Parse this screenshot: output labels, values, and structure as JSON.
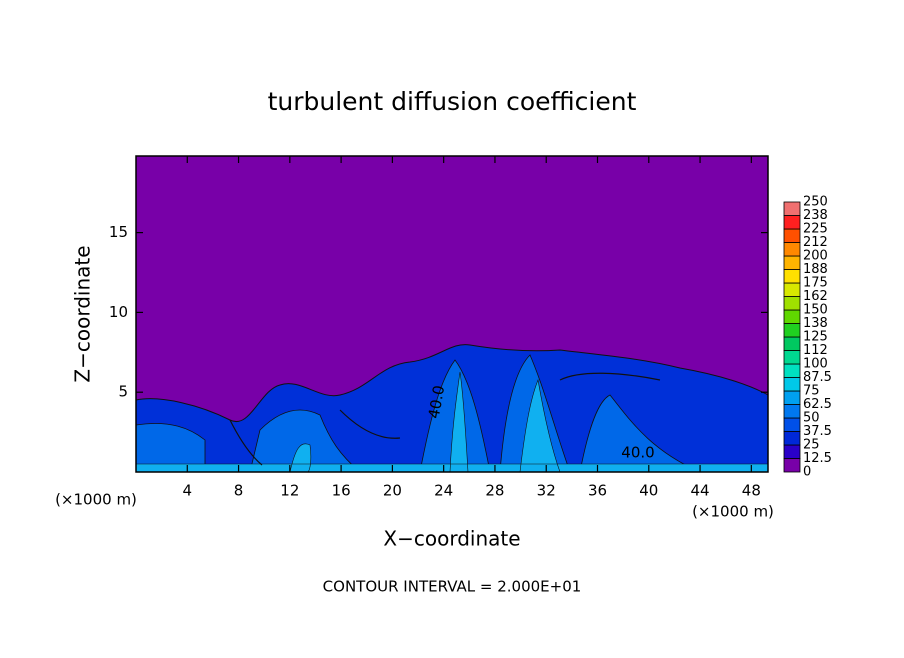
{
  "chart_data": {
    "type": "contour",
    "title": "turbulent diffusion coefficient",
    "x_label": "X−coordinate",
    "y_label": "Z−coordinate",
    "x_unit_left": "(×1000 m)",
    "x_unit_right": "(×1000 m)",
    "footer": "CONTOUR INTERVAL = 2.000E+01",
    "contour_labels": [
      "40.0",
      "40.0"
    ],
    "xlim": [
      0,
      49.3
    ],
    "xticks": [
      4,
      8,
      12,
      16,
      20,
      24,
      28,
      32,
      36,
      40,
      44,
      48
    ],
    "ylim": [
      0,
      19.8
    ],
    "yticks": [
      5,
      10,
      15
    ],
    "levels": [
      0,
      12.5,
      25,
      37.5,
      50,
      62.5,
      75,
      87.5,
      100,
      112,
      125,
      138,
      150,
      162,
      175,
      188,
      200,
      212,
      225,
      238,
      250
    ],
    "level_colors": [
      "#7800a8",
      "#2a00c8",
      "#0028d8",
      "#0050e8",
      "#0078f0",
      "#00a0f0",
      "#00c8e8",
      "#00e0c0",
      "#00d890",
      "#00c860",
      "#20d020",
      "#60d800",
      "#a0e000",
      "#d8e800",
      "#ffe000",
      "#ffb400",
      "#ff8800",
      "#ff5000",
      "#ff2020",
      "#f07070"
    ]
  }
}
